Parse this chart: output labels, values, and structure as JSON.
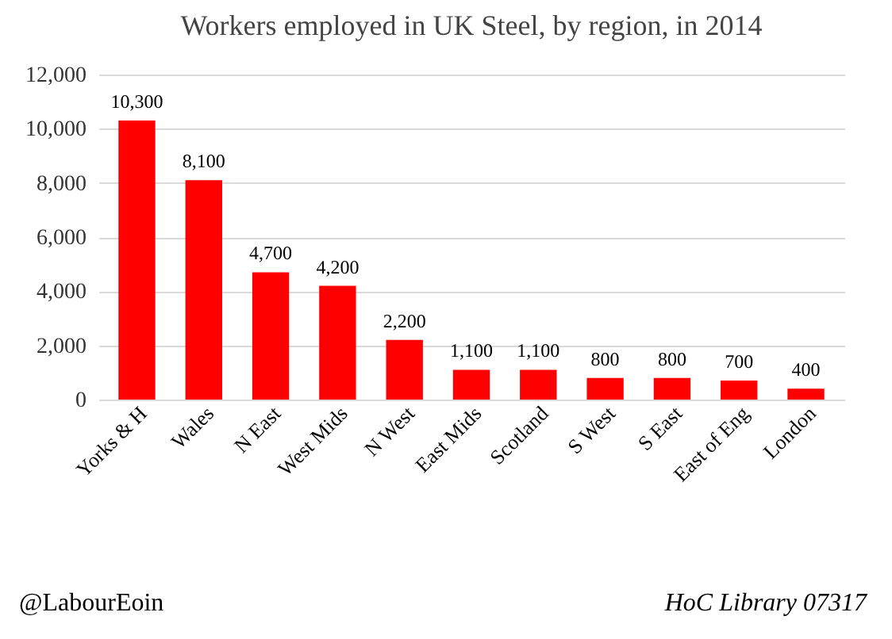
{
  "chart_data": {
    "type": "bar",
    "title": "Workers employed in UK Steel, by region, in 2014",
    "categories": [
      "Yorks & H",
      "Wales",
      "N East",
      "West Mids",
      "N West",
      "East Mids",
      "Scotland",
      "S West",
      "S East",
      "East of Eng",
      "London"
    ],
    "values": [
      10300,
      8100,
      4700,
      4200,
      2200,
      1100,
      1100,
      800,
      800,
      700,
      400
    ],
    "value_labels": [
      "10,300",
      "8,100",
      "4,700",
      "4,200",
      "2,200",
      "1,100",
      "1,100",
      "800",
      "800",
      "700",
      "400"
    ],
    "color": "#ff0000",
    "ylim": [
      0,
      12000
    ],
    "yticks": [
      0,
      {
        "value": 2000,
        "label": "2,000"
      },
      {
        "value": 4000,
        "label": "4,000"
      },
      {
        "value": 6000,
        "label": "6,000"
      },
      {
        "value": 8000,
        "label": "8,000"
      },
      {
        "value": 10000,
        "label": "10,000"
      },
      {
        "value": 12000,
        "label": "12,000"
      }
    ],
    "grid": "y",
    "data_labels": true,
    "annotations": [
      "@LabourEoin",
      "HoC Library 07317"
    ]
  }
}
